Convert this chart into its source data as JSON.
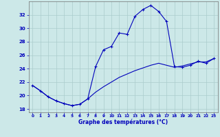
{
  "hours": [
    0,
    1,
    2,
    3,
    4,
    5,
    6,
    7,
    8,
    9,
    10,
    11,
    12,
    13,
    14,
    15,
    16,
    17,
    18,
    19,
    20,
    21,
    22,
    23
  ],
  "temp_main": [
    21.5,
    20.7,
    19.8,
    19.2,
    18.8,
    18.5,
    18.7,
    19.5,
    24.3,
    26.8,
    27.3,
    29.3,
    29.1,
    31.8,
    32.8,
    33.4,
    32.5,
    31.0,
    24.3,
    24.2,
    24.5,
    25.1,
    24.8,
    25.5
  ],
  "temp_smooth": [
    21.5,
    20.7,
    19.8,
    19.2,
    18.8,
    18.5,
    18.7,
    19.5,
    20.5,
    21.3,
    22.0,
    22.7,
    23.2,
    23.7,
    24.1,
    24.5,
    24.8,
    24.5,
    24.2,
    24.4,
    24.7,
    25.0,
    25.0,
    25.5
  ],
  "line_color": "#0000bb",
  "bg_color": "#cce8e8",
  "grid_color": "#aacccc",
  "xlabel": "Graphe des températures (°C)",
  "ylim": [
    17.5,
    34.0
  ],
  "yticks": [
    18,
    20,
    22,
    24,
    26,
    28,
    30,
    32
  ],
  "xlim": [
    -0.5,
    23.5
  ],
  "figsize": [
    3.2,
    2.0
  ],
  "dpi": 100
}
